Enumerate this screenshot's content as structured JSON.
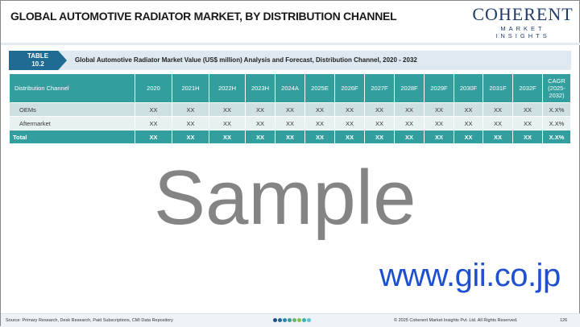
{
  "title": "GLOBAL AUTOMOTIVE RADIATOR MARKET, BY DISTRIBUTION CHANNEL",
  "logo": {
    "line1": "COHERENT",
    "line2": "MARKET INSIGHTS"
  },
  "table_tag": {
    "line1": "TABLE",
    "line2": "10.2"
  },
  "table_caption": "Global Automotive Radiator Market Value (US$ million) Analysis and Forecast, Distribution Channel, 2020 - 2032",
  "columns": [
    "Distribution Channel",
    "2020",
    "2021H",
    "2022H",
    "2023H",
    "2024A",
    "2025E",
    "2026F",
    "2027F",
    "2028F",
    "2029F",
    "2030F",
    "2031F",
    "2032F",
    "CAGR (2025-2032)"
  ],
  "rows": [
    {
      "label": "OEMs",
      "values": [
        "XX",
        "XX",
        "XX",
        "XX",
        "XX",
        "XX",
        "XX",
        "XX",
        "XX",
        "XX",
        "XX",
        "XX",
        "XX",
        "X.X%"
      ]
    },
    {
      "label": "Aftermarket",
      "values": [
        "XX",
        "XX",
        "XX",
        "XX",
        "XX",
        "XX",
        "XX",
        "XX",
        "XX",
        "XX",
        "XX",
        "XX",
        "XX",
        "X.X%"
      ]
    },
    {
      "label": "Total",
      "values": [
        "XX",
        "XX",
        "XX",
        "XX",
        "XX",
        "XX",
        "XX",
        "XX",
        "XX",
        "XX",
        "XX",
        "XX",
        "XX",
        "X.X%"
      ]
    }
  ],
  "watermark": "Sample",
  "gii": "www.gii.co.jp",
  "footer": {
    "source": "Source: Primary Research, Desk Research, Paid Subscriptions, CMI Data Repository",
    "copyright": "© 2025 Coherent Market Insights Pvt. Ltd. All Rights Reserved.",
    "page": "126"
  },
  "colors": {
    "header": "#329e9e",
    "tag": "#1f6b93",
    "gii": "#1f4fd1"
  }
}
